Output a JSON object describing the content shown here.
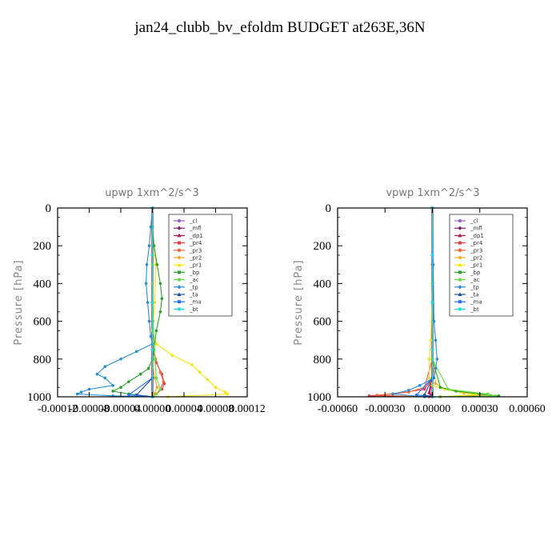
{
  "title": "jan24_clubb_bv_efoldm  BUDGET at263E,36N",
  "legend": [
    "_cl",
    "_mfl",
    "_dp1",
    "_pr4",
    "_pr3",
    "_pr2",
    "_pr1",
    "_bp",
    "_ac",
    "_tp",
    "_ta",
    "_ma",
    "_bt"
  ],
  "colors": {
    "_cl": "#9467bd",
    "_mfl": "#7a1f6a",
    "_dp1": "#c0134f",
    "_pr4": "#e33a4a",
    "_pr3": "#f0643c",
    "_pr2": "#f6a623",
    "_pr1": "#f2e40c",
    "_bp": "#2ca02c",
    "_ac": "#66dd44",
    "_tp": "#2a8fd0",
    "_ta": "#1f4fa0",
    "_ma": "#1f6fff",
    "_bt": "#22dddd"
  },
  "chart_data": [
    {
      "type": "line",
      "title": "upwp   1xm^2/s^3",
      "ylabel": "Pressure [hPa]",
      "xlim": [
        -0.00012,
        0.00012
      ],
      "ylim": [
        1000,
        0
      ],
      "xticks": [
        -0.00012,
        -8e-05,
        -4e-05,
        0.0,
        4e-05,
        8e-05,
        0.00012
      ],
      "xtick_labels": [
        "-0.00012",
        "-0.00008",
        "-0.00004",
        "0.00000",
        "0.00004",
        "0.00008",
        "0.00012"
      ],
      "yticks": [
        0,
        200,
        400,
        600,
        800,
        1000
      ],
      "ytick_labels": [
        "0",
        "200",
        "400",
        "600",
        "800",
        "1000"
      ],
      "series": [
        {
          "name": "_cl",
          "x": [
            0,
            0,
            0,
            0,
            0
          ],
          "y": [
            0,
            250,
            500,
            750,
            1000
          ]
        },
        {
          "name": "_mfl",
          "x": [
            0,
            0,
            0,
            0,
            0
          ],
          "y": [
            0,
            250,
            500,
            750,
            1000
          ]
        },
        {
          "name": "_dp1",
          "x": [
            0,
            0,
            0,
            0,
            0
          ],
          "y": [
            0,
            250,
            500,
            750,
            1000
          ]
        },
        {
          "name": "_pr4",
          "x": [
            0,
            0,
            0,
            0,
            5e-06,
            1.2e-05,
            1.5e-05,
            1.2e-05,
            5e-06,
            0
          ],
          "y": [
            0,
            300,
            600,
            750,
            820,
            880,
            930,
            960,
            985,
            1000
          ]
        },
        {
          "name": "_pr3",
          "x": [
            0,
            0,
            0,
            4e-06,
            1e-05,
            1.4e-05,
            1e-05,
            4e-06,
            0
          ],
          "y": [
            0,
            400,
            700,
            800,
            870,
            920,
            960,
            985,
            1000
          ]
        },
        {
          "name": "_pr2",
          "x": [
            0,
            0,
            0,
            0,
            3e-06,
            6e-06,
            2e-06,
            1e-06
          ],
          "y": [
            0,
            400,
            700,
            820,
            900,
            950,
            985,
            1000
          ]
        },
        {
          "name": "_pr1",
          "x": [
            0,
            0,
            2e-06,
            4e-06,
            3e-06,
            0,
            5e-06,
            2.5e-05,
            5e-05,
            6e-05,
            7e-05,
            8e-05,
            9.2e-05,
            9.5e-05,
            2e-05
          ],
          "y": [
            0,
            100,
            200,
            300,
            500,
            650,
            720,
            780,
            830,
            870,
            910,
            950,
            975,
            985,
            1000
          ]
        },
        {
          "name": "_bp",
          "x": [
            0,
            0,
            2e-06,
            6e-06,
            1e-05,
            1.2e-05,
            1e-05,
            5e-06,
            2e-06,
            0,
            -5e-06,
            -1.5e-05,
            -3e-05,
            -4e-05,
            -5e-05,
            -3e-05,
            0
          ],
          "y": [
            0,
            100,
            200,
            300,
            400,
            480,
            550,
            650,
            750,
            800,
            850,
            880,
            920,
            950,
            970,
            985,
            1000
          ]
        },
        {
          "name": "_ac",
          "x": [
            0,
            0,
            1e-06,
            3e-06,
            5e-06,
            1e-05,
            5e-06,
            0
          ],
          "y": [
            0,
            300,
            600,
            800,
            900,
            960,
            985,
            1000
          ]
        },
        {
          "name": "_tp",
          "x": [
            0,
            -2e-06,
            -4e-06,
            -7e-06,
            -8e-06,
            -6e-06,
            -4e-06,
            -2e-06,
            0,
            -2e-05,
            -4e-05,
            -6e-05,
            -7e-05,
            -6e-05,
            -5e-05,
            -8e-05,
            -9e-05,
            -9.5e-05,
            -5e-05,
            0
          ],
          "y": [
            0,
            100,
            200,
            300,
            400,
            500,
            600,
            680,
            720,
            760,
            800,
            840,
            880,
            900,
            940,
            960,
            975,
            985,
            995,
            1000
          ]
        },
        {
          "name": "_ta",
          "x": [
            0,
            0,
            0,
            -2e-05,
            0
          ],
          "y": [
            0,
            500,
            900,
            990,
            1000
          ]
        },
        {
          "name": "_ma",
          "x": [
            0,
            0,
            0,
            -3e-05,
            0
          ],
          "y": [
            0,
            500,
            900,
            990,
            1000
          ]
        },
        {
          "name": "_bt",
          "x": [
            0,
            0,
            0,
            0,
            0
          ],
          "y": [
            0,
            250,
            500,
            750,
            1000
          ]
        }
      ]
    },
    {
      "type": "line",
      "title": "vpwp   1xm^2/s^3",
      "ylabel": "Pressure [hPa]",
      "xlim": [
        -0.0006,
        0.0006
      ],
      "ylim": [
        1000,
        0
      ],
      "xticks": [
        -0.0006,
        -0.0003,
        0.0,
        0.0003,
        0.0006
      ],
      "xtick_labels": [
        "-0.00060",
        "-0.00030",
        "0.00000",
        "0.00030",
        "0.00060"
      ],
      "yticks": [
        0,
        200,
        400,
        600,
        800,
        1000
      ],
      "ytick_labels": [
        "0",
        "200",
        "400",
        "600",
        "800",
        "1000"
      ],
      "series": [
        {
          "name": "_cl",
          "x": [
            0,
            0,
            0,
            0,
            0
          ],
          "y": [
            0,
            250,
            500,
            750,
            1000
          ]
        },
        {
          "name": "_mfl",
          "x": [
            0,
            0,
            0,
            0,
            0
          ],
          "y": [
            0,
            250,
            500,
            750,
            1000
          ]
        },
        {
          "name": "_dp1",
          "x": [
            0,
            0,
            0,
            0,
            -2e-05,
            0
          ],
          "y": [
            0,
            300,
            600,
            900,
            980,
            1000
          ]
        },
        {
          "name": "_pr4",
          "x": [
            0,
            0,
            0,
            0,
            -5e-05,
            -0.00025,
            -0.0004,
            -2e-05
          ],
          "y": [
            0,
            300,
            600,
            900,
            960,
            985,
            995,
            1000
          ]
        },
        {
          "name": "_pr3",
          "x": [
            0,
            0,
            0,
            -5e-05,
            -0.00015,
            -0.00035,
            -5e-05
          ],
          "y": [
            0,
            400,
            800,
            950,
            975,
            992,
            1000
          ]
        },
        {
          "name": "_pr2",
          "x": [
            0,
            0,
            0,
            2e-05,
            8e-05,
            0.0002,
            0.00035,
            5e-05
          ],
          "y": [
            0,
            400,
            800,
            930,
            960,
            980,
            990,
            1000
          ]
        },
        {
          "name": "_pr1",
          "x": [
            0,
            0,
            -1e-05,
            -2e-05,
            -2e-05,
            0,
            8e-05,
            0.00018,
            0.00028,
            5e-05
          ],
          "y": [
            0,
            400,
            700,
            800,
            900,
            940,
            960,
            975,
            988,
            1000
          ]
        },
        {
          "name": "_bp",
          "x": [
            0,
            0,
            0,
            5e-05,
            0.00015,
            0.0003,
            0.00042,
            5e-05
          ],
          "y": [
            0,
            400,
            800,
            950,
            970,
            985,
            995,
            1000
          ]
        },
        {
          "name": "_ac",
          "x": [
            0,
            0,
            0,
            0.0001,
            0.00035,
            0.0004,
            5e-05
          ],
          "y": [
            0,
            400,
            800,
            960,
            985,
            995,
            1000
          ]
        },
        {
          "name": "_tp",
          "x": [
            0,
            5e-06,
            1e-05,
            2e-05,
            3e-05,
            2e-05,
            1e-05,
            -8e-05,
            -0.00015,
            -0.00025,
            -5e-05
          ],
          "y": [
            0,
            300,
            600,
            700,
            800,
            850,
            900,
            940,
            965,
            985,
            1000
          ]
        },
        {
          "name": "_ta",
          "x": [
            0,
            0,
            0,
            -5e-05,
            0
          ],
          "y": [
            0,
            500,
            900,
            990,
            1000
          ]
        },
        {
          "name": "_ma",
          "x": [
            0,
            0,
            0,
            -0.0001,
            0
          ],
          "y": [
            0,
            500,
            900,
            990,
            1000
          ]
        },
        {
          "name": "_bt",
          "x": [
            0,
            0,
            0,
            0,
            0
          ],
          "y": [
            0,
            250,
            500,
            750,
            1000
          ]
        }
      ]
    }
  ]
}
